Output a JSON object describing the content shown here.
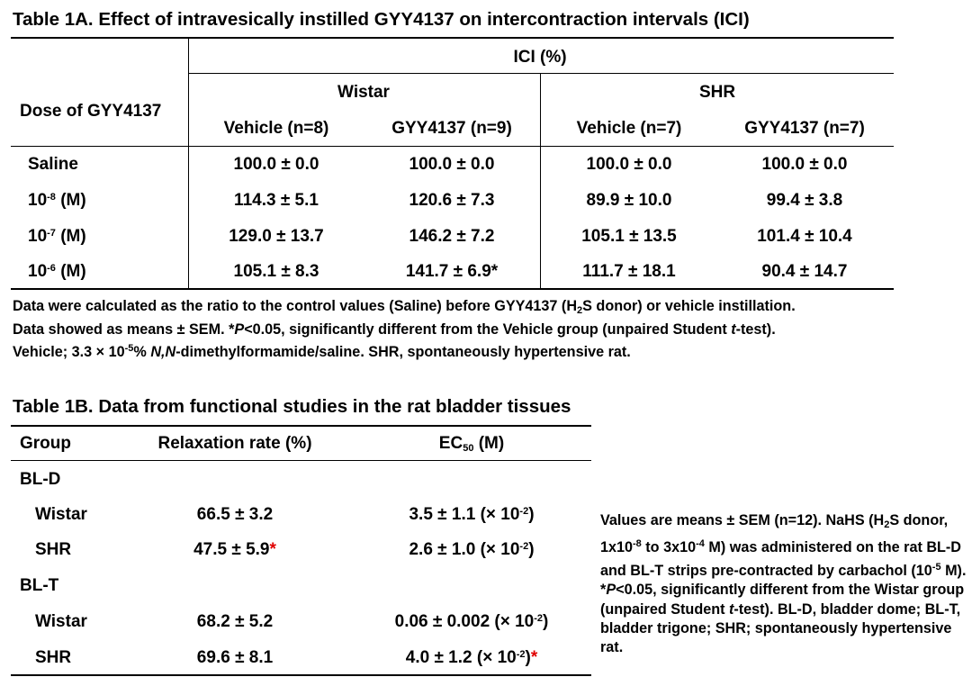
{
  "table1a": {
    "title": "Table 1A. Effect of intravesically instilled GYY4137 on intercontraction intervals (ICI)",
    "ici_header": "ICI (%)",
    "dose_header": "Dose of GYY4137",
    "groups": [
      "Wistar",
      "SHR"
    ],
    "columns": [
      "Vehicle (n=8)",
      "GYY4137 (n=9)",
      "Vehicle (n=7)",
      "GYY4137 (n=7)"
    ],
    "rows": [
      {
        "dose_base": "Saline",
        "dose_exp": "",
        "dose_unit": "",
        "values": [
          "100.0 ± 0.0",
          "100.0 ± 0.0",
          "100.0 ± 0.0",
          "100.0 ± 0.0"
        ]
      },
      {
        "dose_base": "10",
        "dose_exp": "-8",
        "dose_unit": " (M)",
        "values": [
          "114.3 ± 5.1",
          "120.6 ± 7.3",
          "89.9 ± 10.0",
          "99.4 ± 3.8"
        ]
      },
      {
        "dose_base": "10",
        "dose_exp": "-7",
        "dose_unit": " (M)",
        "values": [
          "129.0 ± 13.7",
          "146.2 ± 7.2",
          "105.1 ± 13.5",
          "101.4 ± 10.4"
        ]
      },
      {
        "dose_base": "10",
        "dose_exp": "-6",
        "dose_unit": " (M)",
        "values": [
          "105.1 ± 8.3",
          "141.7 ± 6.9*",
          "111.7 ± 18.1",
          "90.4 ± 14.7"
        ]
      }
    ],
    "notes": {
      "line1_a": "Data were calculated as the ratio to the control values (Saline) before GYY4137 (H",
      "line1_sub": "2",
      "line1_b": "S donor) or vehicle instillation.",
      "line2_a": "Data showed as means ± SEM.  *",
      "line2_p": "P",
      "line2_b": "<0.05, significantly different from the Vehicle group (unpaired Student ",
      "line2_t": "t",
      "line2_c": "-test).",
      "line3_a": "Vehicle; 3.3 × 10",
      "line3_sup": "-5",
      "line3_b": "% ",
      "line3_it": "N,N",
      "line3_c": "-dimethylformamide/saline.  SHR, spontaneously hypertensive rat."
    }
  },
  "table1b": {
    "title": "Table 1B. Data from functional studies in the rat bladder tissues",
    "headers": {
      "group": "Group",
      "relax": "Relaxation rate (%)",
      "ec_base": "EC",
      "ec_sub": "50",
      "ec_unit": " (M)"
    },
    "sections": [
      {
        "label": "BL-D",
        "rows": [
          {
            "group": "Wistar",
            "relax": "66.5 ± 3.2",
            "relax_star": "",
            "ec": "3.5 ± 1.1 (× 10",
            "ec_exp": "-2",
            "ec_close": ")",
            "ec_star": ""
          },
          {
            "group": "SHR",
            "relax": "47.5 ± 5.9",
            "relax_star": "*",
            "ec": "2.6 ± 1.0 (× 10",
            "ec_exp": "-2",
            "ec_close": ")",
            "ec_star": ""
          }
        ]
      },
      {
        "label": "BL-T",
        "rows": [
          {
            "group": "Wistar",
            "relax": "68.2 ± 5.2",
            "relax_star": "",
            "ec": "0.06 ± 0.002 (× 10",
            "ec_exp": "-2",
            "ec_close": ")",
            "ec_star": ""
          },
          {
            "group": "SHR",
            "relax": "69.6 ± 8.1",
            "relax_star": "",
            "ec": "4.0 ± 1.2 (× 10",
            "ec_exp": "-2",
            "ec_close": ")",
            "ec_star": "*"
          }
        ]
      }
    ],
    "note": {
      "a": "Values are means ± SEM (n=12).  NaHS (H",
      "sub1": "2",
      "b": "S donor, 1x10",
      "sup1": "-8",
      "c": " to 3x10",
      "sup2": "-4",
      "d": " M) was administered on the rat BL-D and BL-T strips pre-contracted by carbachol (10",
      "sup3": "-5",
      "e": " M).  *",
      "p": "P",
      "f": "<0.05, significantly different from the Wistar group (unpaired Student ",
      "t": "t",
      "g": "-test).  BL-D, bladder dome;  BL-T, bladder trigone;  SHR; spontaneously hypertensive rat."
    }
  }
}
